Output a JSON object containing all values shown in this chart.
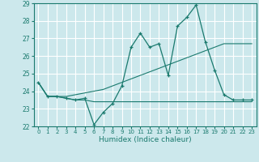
{
  "xlabel": "Humidex (Indice chaleur)",
  "ylabel": "",
  "bg_color": "#cce8ec",
  "grid_color": "#ffffff",
  "line_color": "#1a7a6e",
  "x": [
    0,
    1,
    2,
    3,
    4,
    5,
    6,
    7,
    8,
    9,
    10,
    11,
    12,
    13,
    14,
    15,
    16,
    17,
    18,
    19,
    20,
    21,
    22,
    23
  ],
  "series1": [
    24.5,
    23.7,
    23.7,
    23.6,
    23.5,
    23.6,
    22.1,
    22.8,
    23.3,
    24.3,
    26.5,
    27.3,
    26.5,
    26.7,
    24.9,
    27.7,
    28.2,
    28.9,
    26.8,
    25.2,
    23.8,
    23.5,
    23.5,
    23.5
  ],
  "series2": [
    24.5,
    23.7,
    23.7,
    23.7,
    23.8,
    23.9,
    24.0,
    24.1,
    24.3,
    24.5,
    24.7,
    24.9,
    25.1,
    25.3,
    25.5,
    25.7,
    25.9,
    26.1,
    26.3,
    26.5,
    26.7,
    26.7,
    26.7,
    26.7
  ],
  "series3": [
    24.5,
    23.7,
    23.7,
    23.6,
    23.5,
    23.5,
    23.4,
    23.4,
    23.4,
    23.4,
    23.4,
    23.4,
    23.4,
    23.4,
    23.4,
    23.4,
    23.4,
    23.4,
    23.4,
    23.4,
    23.4,
    23.4,
    23.4,
    23.4
  ],
  "ylim": [
    22,
    29
  ],
  "xlim": [
    -0.5,
    23.5
  ],
  "yticks": [
    22,
    23,
    24,
    25,
    26,
    27,
    28,
    29
  ],
  "xticks": [
    0,
    1,
    2,
    3,
    4,
    5,
    6,
    7,
    8,
    9,
    10,
    11,
    12,
    13,
    14,
    15,
    16,
    17,
    18,
    19,
    20,
    21,
    22,
    23
  ]
}
